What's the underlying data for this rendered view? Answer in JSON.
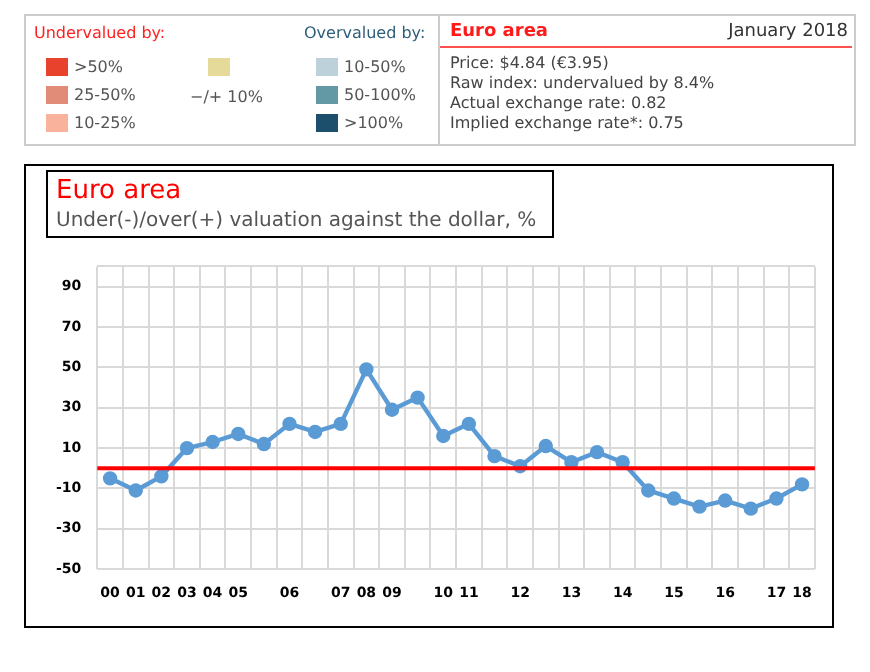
{
  "chart_data": [
    {
      "type": "other",
      "annotations": [
        "Undervalued by:",
        "Overvalued by:"
      ],
      "categories": [
        ">50%",
        "25-50%",
        "10-25%",
        "−/+ 10%",
        "10-50%",
        "50-100%",
        ">100%"
      ],
      "colors": [
        "#e8412c",
        "#e08c78",
        "#f9b29c",
        "#e6da9a",
        "#bcd1da",
        "#6399a4",
        "#1c4f6b"
      ]
    },
    {
      "type": "other",
      "title": "Euro area",
      "subtitle": "January 2018",
      "annotations": [
        "Price: $4.84 (€3.95)",
        "Raw index: undervalued by 8.4%",
        "Actual exchange rate: 0.82",
        "Implied exchange rate*: 0.75"
      ]
    },
    {
      "type": "line",
      "title": "Euro area",
      "subtitle": "Under(-)/over(+) valuation against the dollar, %",
      "categories": [
        "00",
        "01",
        "02",
        "03",
        "04",
        "05",
        null,
        "06",
        null,
        "07",
        "08",
        "09",
        null,
        "10",
        "11",
        null,
        "12",
        null,
        "13",
        null,
        "14",
        null,
        "15",
        null,
        "16",
        null,
        "17",
        "18"
      ],
      "series": [
        {
          "color": "#5b9bd5",
          "values": [
            -5,
            -11,
            -4,
            10,
            13,
            17,
            12,
            22,
            18,
            22,
            49,
            29,
            35,
            16,
            22,
            6,
            1,
            11,
            3,
            8,
            3,
            -11,
            -15,
            -19,
            -16,
            -20,
            -15,
            -8
          ]
        }
      ],
      "ylim": [
        -50,
        100
      ],
      "yticks": [
        -50,
        -30,
        -10,
        10,
        30,
        50,
        70,
        90,
        {
          "value": 100,
          "label": null
        }
      ],
      "ref_lines": [
        {
          "axis": "y",
          "value": 0,
          "color": "#ff0000"
        }
      ],
      "grid": true,
      "marker": "circle",
      "line_style": "solid",
      "legend": false
    }
  ]
}
